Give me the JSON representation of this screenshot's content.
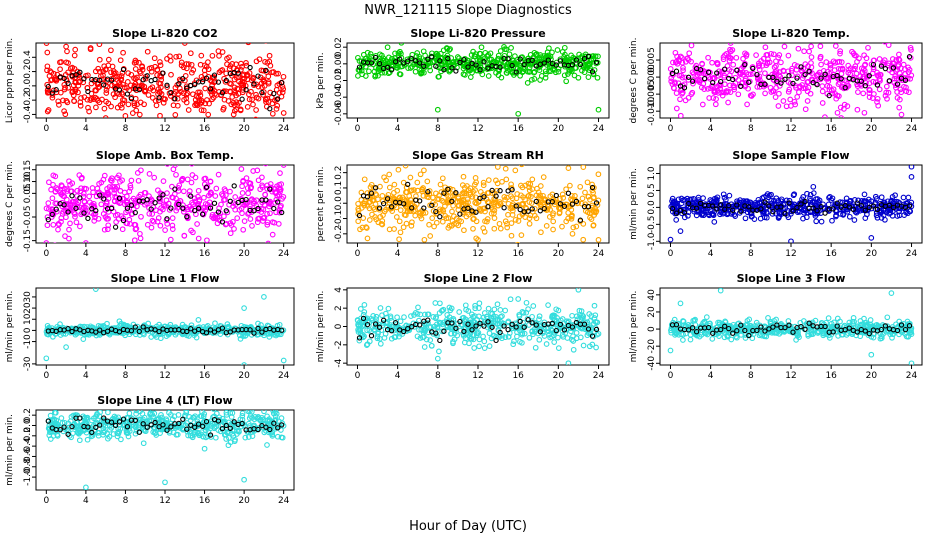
{
  "page": {
    "title": "NWR_121115  Slope Diagnostics",
    "xlabel": "Hour of Day (UTC)"
  },
  "chart_data": [
    {
      "type": "scatter",
      "title": "Slope Li-820 CO2",
      "ylabel": "Licor ppm per min.",
      "color": "#ff0000",
      "center": 0.0,
      "spread": 0.22,
      "xlim": [
        0,
        24
      ],
      "ylim": [
        -0.45,
        0.6
      ],
      "yticks": [
        "-0.4",
        "-0.2",
        "0.0",
        "0.2",
        "0.4"
      ],
      "ytickvals": [
        -0.4,
        -0.2,
        0.0,
        0.2,
        0.4
      ],
      "xticks": [
        0,
        4,
        8,
        12,
        16,
        20,
        24
      ],
      "outliers": [
        [
          8,
          -0.42
        ],
        [
          6,
          -0.45
        ],
        [
          2,
          0.55
        ],
        [
          14,
          0.6
        ],
        [
          24,
          -0.38
        ]
      ]
    },
    {
      "type": "scatter",
      "title": "Slope Li-820 Pressure",
      "ylabel": "kPa per min.",
      "color": "#00cc00",
      "center": 0.0,
      "spread": 0.008,
      "xlim": [
        0,
        24
      ],
      "ylim": [
        -0.065,
        0.025
      ],
      "yticks": [
        "-0.06",
        "-0.04",
        "-0.02",
        "0.00",
        "0.02"
      ],
      "ytickvals": [
        -0.06,
        -0.04,
        -0.02,
        0.0,
        0.02
      ],
      "xticks": [
        0,
        4,
        8,
        12,
        16,
        20,
        24
      ],
      "outliers": [
        [
          8,
          -0.055
        ],
        [
          16,
          -0.06
        ],
        [
          24,
          -0.055
        ],
        [
          3,
          0.02
        ]
      ]
    },
    {
      "type": "scatter",
      "title": "Slope Li-820 Temp.",
      "ylabel": "degrees C per min.",
      "color": "#ff00ff",
      "center": 0.0,
      "spread": 0.004,
      "xlim": [
        0,
        24
      ],
      "ylim": [
        -0.012,
        0.01
      ],
      "yticks": [
        "-0.010",
        "-0.005",
        "0.000",
        "0.005"
      ],
      "ytickvals": [
        -0.01,
        -0.005,
        0.0,
        0.005
      ],
      "xticks": [
        0,
        4,
        8,
        12,
        16,
        20,
        24
      ],
      "outliers": [
        [
          6,
          0.01
        ],
        [
          14,
          0.009
        ],
        [
          23,
          -0.011
        ],
        [
          17,
          -0.012
        ]
      ]
    },
    {
      "type": "scatter",
      "title": "Slope Amb. Box Temp.",
      "ylabel": "degrees C per min.",
      "color": "#ff00ff",
      "center": 0.0,
      "spread": 0.07,
      "xlim": [
        0,
        24
      ],
      "ylim": [
        -0.16,
        0.17
      ],
      "yticks": [
        "-0.15",
        "-0.05",
        "0.05",
        "0.10",
        "0.15"
      ],
      "ytickvals": [
        -0.15,
        -0.05,
        0.05,
        0.1,
        0.15
      ],
      "xticks": [
        0,
        4,
        8,
        12,
        16,
        20,
        24
      ],
      "outliers": [
        [
          0,
          -0.16
        ],
        [
          4,
          -0.16
        ],
        [
          24,
          0.17
        ]
      ]
    },
    {
      "type": "scatter",
      "title": "Slope Gas Stream RH",
      "ylabel": "percent per min.",
      "color": "#ffa500",
      "center": 0.0,
      "spread": 0.09,
      "xlim": [
        0,
        24
      ],
      "ylim": [
        -0.26,
        0.25
      ],
      "yticks": [
        "-0.2",
        "-0.1",
        "0.0",
        "0.1",
        "0.2"
      ],
      "ytickvals": [
        -0.2,
        -0.1,
        0.0,
        0.1,
        0.2
      ],
      "xticks": [
        0,
        4,
        8,
        12,
        16,
        20,
        24
      ],
      "outliers": [
        [
          1,
          -0.23
        ],
        [
          12,
          -0.24
        ],
        [
          21,
          0.23
        ],
        [
          24,
          -0.24
        ]
      ]
    },
    {
      "type": "scatter",
      "title": "Slope Sample Flow",
      "ylabel": "ml/min per min.",
      "color": "#0000cc",
      "center": 0.0,
      "spread": 0.17,
      "xlim": [
        0,
        24
      ],
      "ylim": [
        -1.05,
        1.25
      ],
      "yticks": [
        "-1.0",
        "-0.5",
        "0.0",
        "0.5",
        "1.0"
      ],
      "ytickvals": [
        -1.0,
        -0.5,
        0.0,
        0.5,
        1.0
      ],
      "xticks": [
        0,
        4,
        8,
        12,
        16,
        20,
        24
      ],
      "outliers": [
        [
          0,
          -0.95
        ],
        [
          12,
          -1.0
        ],
        [
          20,
          -0.9
        ],
        [
          24,
          1.2
        ],
        [
          24,
          0.9
        ],
        [
          1,
          -0.7
        ]
      ]
    },
    {
      "type": "scatter",
      "title": "Slope Line 1 Flow",
      "ylabel": "ml/min per min.",
      "color": "#33dddd",
      "center": 0.0,
      "spread": 2.5,
      "xlim": [
        0,
        24
      ],
      "ylim": [
        -31,
        38
      ],
      "yticks": [
        "-30",
        "-10",
        "0",
        "10",
        "20",
        "30"
      ],
      "ytickvals": [
        -30,
        -10,
        0,
        10,
        20,
        30
      ],
      "xticks": [
        0,
        4,
        8,
        12,
        16,
        20,
        24
      ],
      "outliers": [
        [
          5,
          37
        ],
        [
          22,
          30
        ],
        [
          20,
          20
        ],
        [
          0,
          -25
        ],
        [
          20,
          -31
        ],
        [
          24,
          -27
        ],
        [
          2,
          -15
        ]
      ]
    },
    {
      "type": "scatter",
      "title": "Slope Line 2 Flow",
      "ylabel": "ml/min per min.",
      "color": "#33dddd",
      "center": 0.0,
      "spread": 1.0,
      "xlim": [
        0,
        24
      ],
      "ylim": [
        -4.2,
        4.2
      ],
      "yticks": [
        "-4",
        "-2",
        "0",
        "2",
        "4"
      ],
      "ytickvals": [
        -4,
        -2,
        0,
        2,
        4
      ],
      "xticks": [
        0,
        4,
        8,
        12,
        16,
        20,
        24
      ],
      "outliers": [
        [
          22,
          4
        ],
        [
          21,
          -4
        ],
        [
          8,
          -3.5
        ],
        [
          16,
          3
        ]
      ]
    },
    {
      "type": "scatter",
      "title": "Slope Line 3 Flow",
      "ylabel": "ml/min per min.",
      "color": "#33dddd",
      "center": 0.0,
      "spread": 5,
      "xlim": [
        0,
        24
      ],
      "ylim": [
        -42,
        48
      ],
      "yticks": [
        "-40",
        "-20",
        "0",
        "20",
        "40"
      ],
      "ytickvals": [
        -40,
        -20,
        0,
        20,
        40
      ],
      "xticks": [
        0,
        4,
        8,
        12,
        16,
        20,
        24
      ],
      "outliers": [
        [
          5,
          45
        ],
        [
          22,
          42
        ],
        [
          20,
          -30
        ],
        [
          24,
          -40
        ],
        [
          0,
          -25
        ],
        [
          1,
          30
        ]
      ]
    },
    {
      "type": "scatter",
      "title": "Slope Line 4 (LT) Flow",
      "ylabel": "ml/min per min.",
      "color": "#33dddd",
      "center": 0.0,
      "spread": 0.13,
      "xlim": [
        0,
        24
      ],
      "ylim": [
        -1.25,
        0.3
      ],
      "yticks": [
        "-1.0",
        "-0.8",
        "-0.6",
        "-0.4",
        "-0.2",
        "0.0",
        "0.2"
      ],
      "ytickvals": [
        -1.0,
        -0.8,
        -0.6,
        -0.4,
        -0.2,
        0.0,
        0.2
      ],
      "xticks": [
        0,
        4,
        8,
        12,
        16,
        20,
        24
      ],
      "outliers": [
        [
          4,
          -1.2
        ],
        [
          12,
          -1.1
        ],
        [
          20,
          -1.05
        ],
        [
          16,
          -0.45
        ]
      ]
    }
  ]
}
